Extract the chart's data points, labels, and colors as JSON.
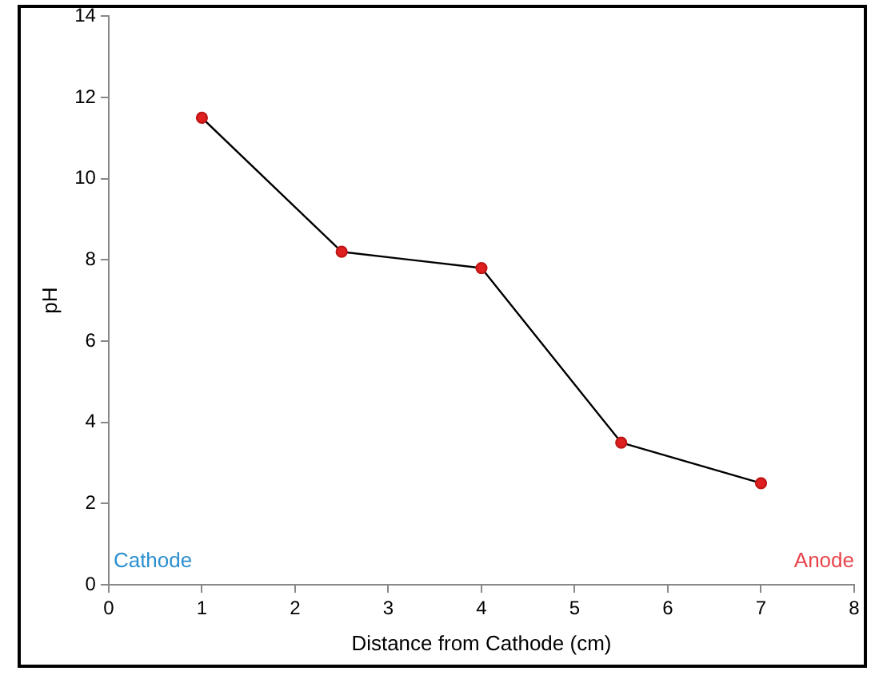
{
  "chart_data": {
    "type": "line",
    "xlabel": "Distance from Cathode (cm)",
    "ylabel": "pH",
    "x": [
      1,
      2.5,
      4,
      5.5,
      7
    ],
    "series": [
      {
        "color": "#000000",
        "values": [
          11.5,
          8.2,
          7.8,
          3.5,
          2.5
        ]
      }
    ],
    "xlim": [
      0,
      8
    ],
    "xticks": [
      0,
      1,
      2,
      3,
      4,
      5,
      6,
      7,
      8
    ],
    "ylim": [
      0,
      14
    ],
    "yticks": [
      0,
      2,
      4,
      6,
      8,
      10,
      12,
      14
    ],
    "grid": false,
    "legend": false,
    "marker": "circle",
    "line_style": "solid",
    "annotations": [
      "Cathode",
      "Anode"
    ]
  }
}
